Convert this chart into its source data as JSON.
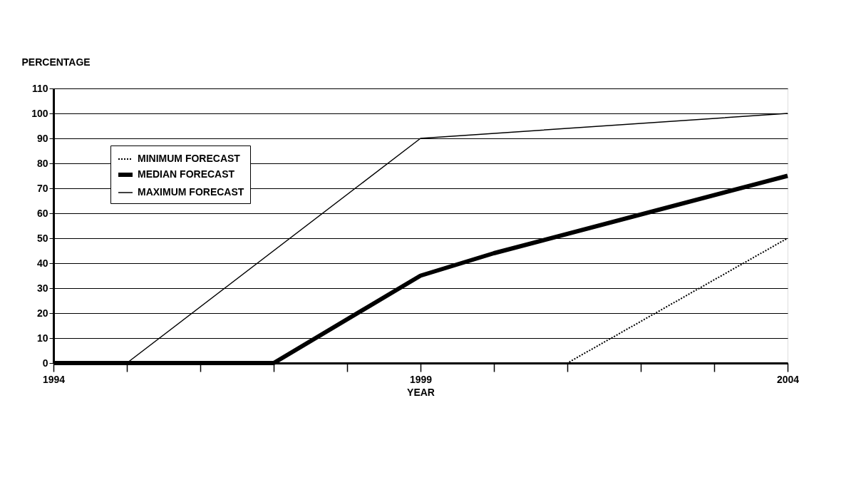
{
  "chart_data": {
    "type": "line",
    "xlabel": "YEAR",
    "ylabel": "PERCENTAGE",
    "xlim": [
      1994,
      2004
    ],
    "xticks": [
      1994,
      {
        "value": 1995,
        "label": null
      },
      {
        "value": 1996,
        "label": null
      },
      {
        "value": 1997,
        "label": null
      },
      {
        "value": 1998,
        "label": null
      },
      1999,
      {
        "value": 2000,
        "label": null
      },
      {
        "value": 2001,
        "label": null
      },
      {
        "value": 2002,
        "label": null
      },
      {
        "value": 2003,
        "label": null
      },
      2004
    ],
    "ylim": [
      0,
      110
    ],
    "yticks": [
      0,
      10,
      20,
      30,
      40,
      50,
      60,
      70,
      80,
      90,
      100,
      110
    ],
    "grid": "y",
    "legend": "top left",
    "marker": "none",
    "series": [
      {
        "name": "MINIMUM FORECAST",
        "color": "#000000",
        "line_style": "dotted",
        "x": [
          1994,
          2001,
          2004
        ],
        "values": [
          0,
          0,
          50
        ]
      },
      {
        "name": "MEDIAN FORECAST",
        "color": "#000000",
        "line_style": "solid",
        "x": [
          1994,
          1997,
          1999,
          2000,
          2004
        ],
        "values": [
          0,
          0,
          35,
          44,
          75
        ]
      },
      {
        "name": "MAXIMUM FORECAST",
        "color": "#000000",
        "line_style": "solid",
        "x": [
          1994,
          1995,
          1999,
          2004
        ],
        "values": [
          0,
          0,
          90,
          100
        ]
      }
    ]
  }
}
